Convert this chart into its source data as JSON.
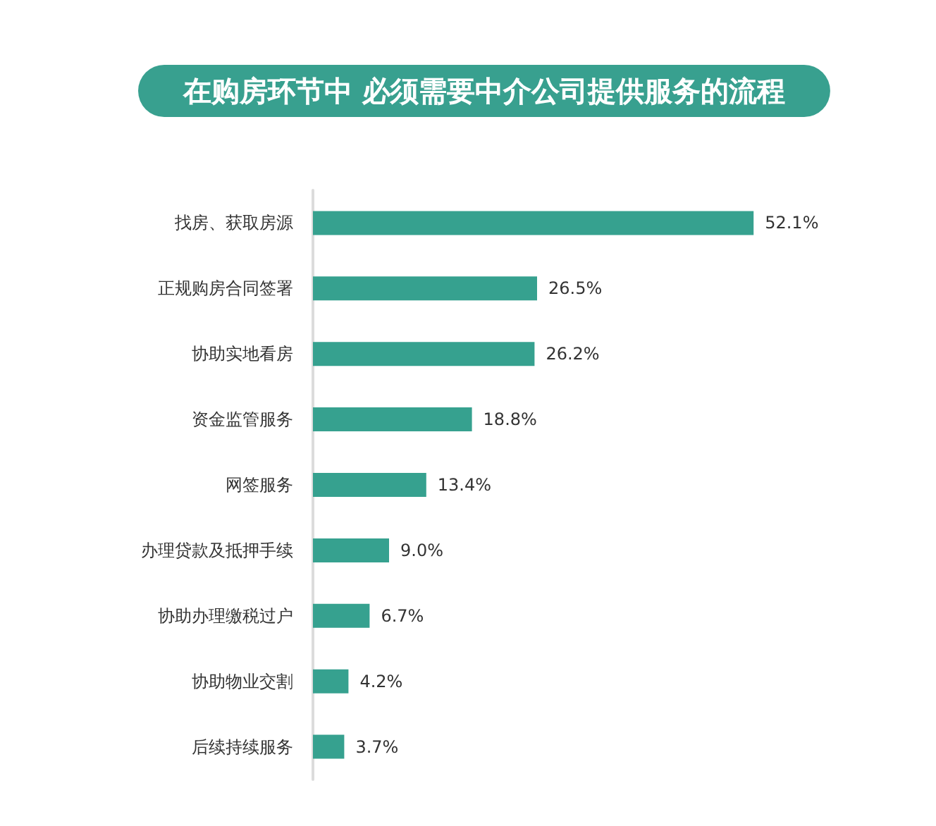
{
  "chart_data": {
    "type": "bar",
    "orientation": "horizontal",
    "title": "在购房环节中 必须需要中介公司提供服务的流程",
    "categories": [
      "找房、获取房源",
      "正规购房合同签署",
      "协助实地看房",
      "资金监管服务",
      "网签服务",
      "办理贷款及抵押手续",
      "协助办理缴税过户",
      "协助物业交割",
      "后续持续服务"
    ],
    "values": [
      52.1,
      26.5,
      26.2,
      18.8,
      13.4,
      9.0,
      6.7,
      4.2,
      3.7
    ],
    "value_labels": [
      "52.1%",
      "26.5%",
      "26.2%",
      "18.8%",
      "13.4%",
      "9.0%",
      "6.7%",
      "4.2%",
      "3.7%"
    ],
    "color": "#36a18f",
    "tick_labels": "y"
  }
}
